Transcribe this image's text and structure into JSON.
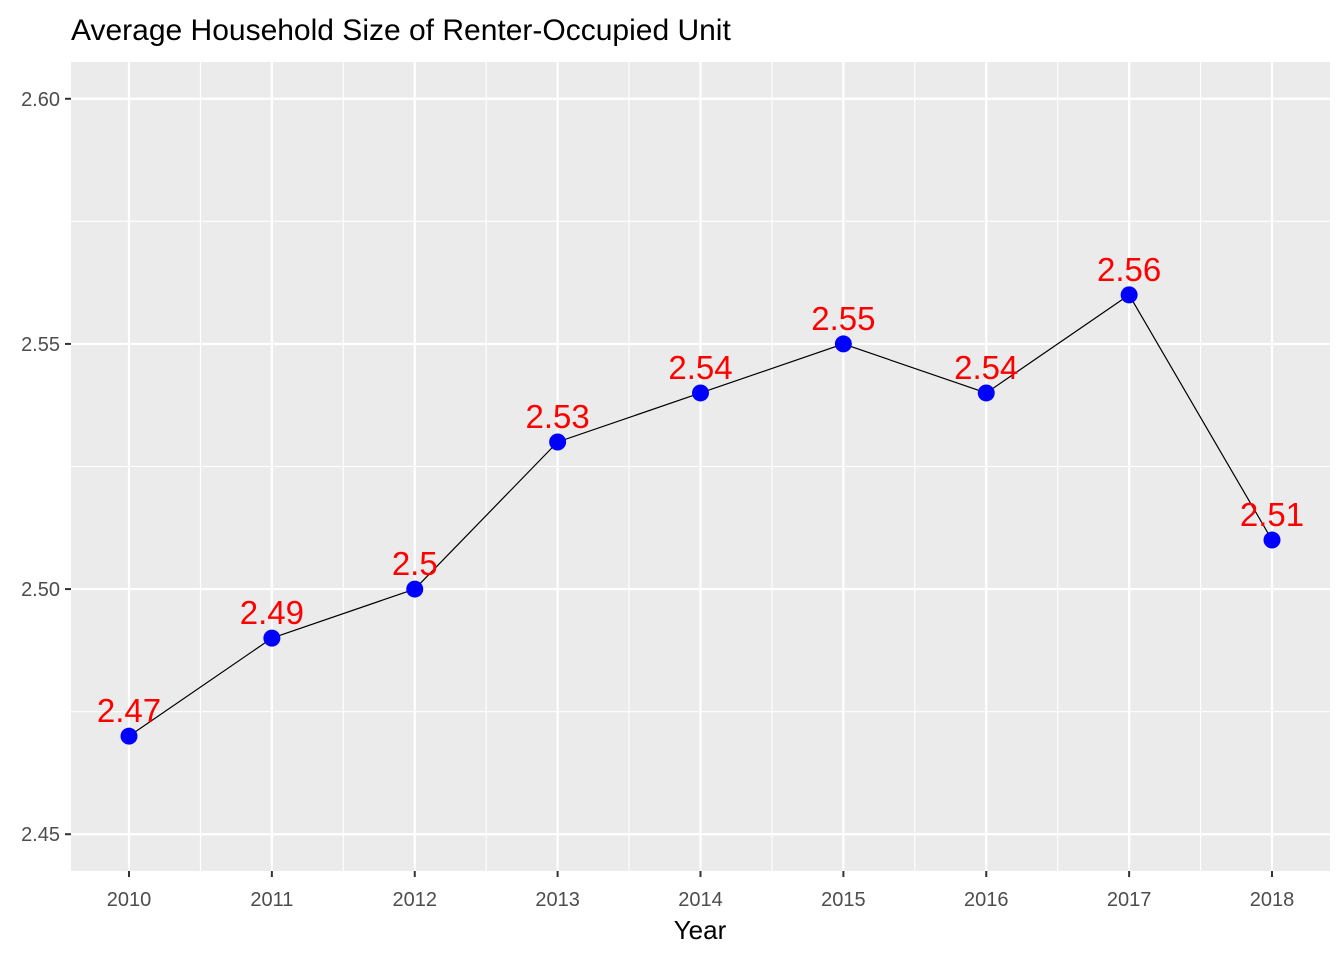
{
  "chart_data": {
    "type": "line",
    "title": "Average Household Size of Renter-Occupied Unit",
    "xlabel": "Year",
    "ylabel": "",
    "categories": [
      "2010",
      "2011",
      "2012",
      "2013",
      "2014",
      "2015",
      "2016",
      "2017",
      "2018"
    ],
    "values": [
      2.47,
      2.49,
      2.5,
      2.53,
      2.54,
      2.55,
      2.54,
      2.56,
      2.51
    ],
    "data_labels": [
      "2.47",
      "2.49",
      "2.5",
      "2.53",
      "2.54",
      "2.55",
      "2.54",
      "2.56",
      "2.51"
    ],
    "y_ticks": [
      "2.45",
      "2.50",
      "2.55",
      "2.60"
    ],
    "ylim": [
      2.4425,
      2.6075
    ],
    "grid": true,
    "legend": "none",
    "colors": {
      "panel_background": "#ebebeb",
      "grid": "#ffffff",
      "line": "#000000",
      "point": "#0000ff",
      "label": "#ff0000",
      "tick_label": "#4d4d4d"
    }
  }
}
